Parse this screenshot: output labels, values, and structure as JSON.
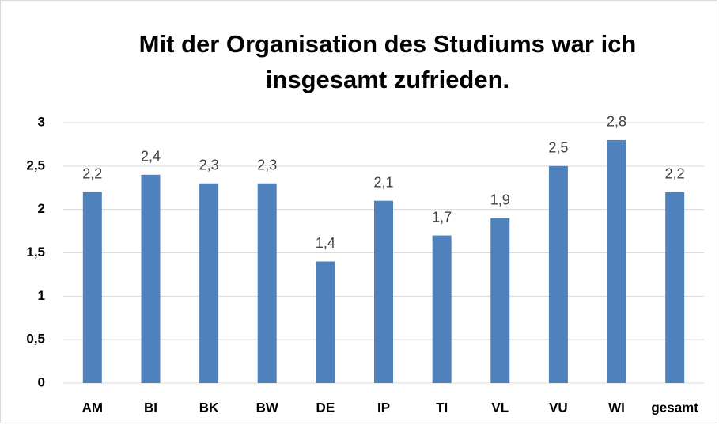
{
  "chart_data": {
    "type": "bar",
    "title": [
      "Mit der Organisation des Studiums war ich",
      "insgesamt zufrieden."
    ],
    "categories": [
      "AM",
      "BI",
      "BK",
      "BW",
      "DE",
      "IP",
      "TI",
      "VL",
      "VU",
      "WI",
      "gesamt"
    ],
    "values": [
      2.2,
      2.4,
      2.3,
      2.3,
      1.4,
      2.1,
      1.7,
      1.9,
      2.5,
      2.8,
      2.2
    ],
    "value_labels": [
      "2,2",
      "2,4",
      "2,3",
      "2,3",
      "1,4",
      "2,1",
      "1,7",
      "1,9",
      "2,5",
      "2,8",
      "2,2"
    ],
    "color": "#4f81bd",
    "ylim": [
      0,
      3
    ],
    "yticks": [
      0,
      {
        "value": 0.5,
        "label": "0,5"
      },
      1,
      {
        "value": 1.5,
        "label": "1,5"
      },
      2,
      {
        "value": 2.5,
        "label": "2,5"
      },
      3
    ],
    "grid": true
  }
}
